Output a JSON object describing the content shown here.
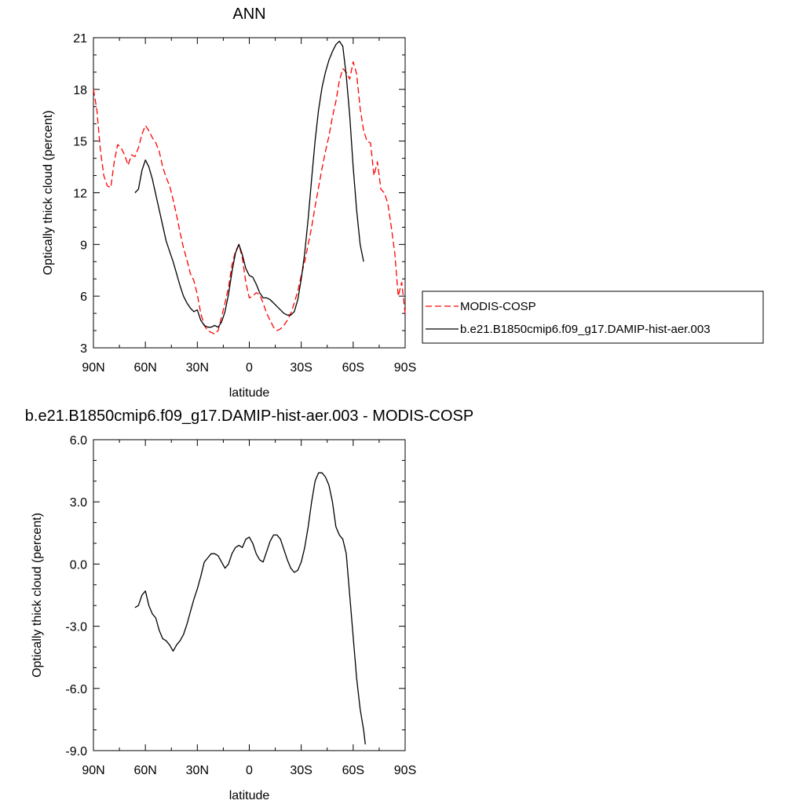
{
  "chart_data": [
    {
      "type": "line",
      "title": "ANN",
      "xlabel": "latitude",
      "ylabel": "Optically thick cloud (percent)",
      "xlim": [
        90,
        -90
      ],
      "ylim": [
        3,
        21
      ],
      "x_ticks": [
        90,
        60,
        30,
        0,
        -30,
        -60,
        -90
      ],
      "x_tick_labels": [
        "90N",
        "60N",
        "30N",
        "0",
        "30S",
        "60S",
        "90S"
      ],
      "y_ticks": [
        3,
        6,
        9,
        12,
        15,
        18,
        21
      ],
      "y_tick_labels": [
        "3",
        "6",
        "9",
        "12",
        "15",
        "18",
        "21"
      ],
      "legend_position": "right",
      "series": [
        {
          "name": "MODIS-COSP",
          "color": "#ff0000",
          "dash": "dashed",
          "points": [
            [
              90,
              18.0
            ],
            [
              88,
              16.8
            ],
            [
              86,
              14.5
            ],
            [
              84,
              13.0
            ],
            [
              82,
              12.4
            ],
            [
              80,
              12.3
            ],
            [
              78,
              13.8
            ],
            [
              76,
              14.8
            ],
            [
              74,
              14.6
            ],
            [
              72,
              14.2
            ],
            [
              70,
              13.6
            ],
            [
              68,
              14.2
            ],
            [
              66,
              14.1
            ],
            [
              64,
              14.6
            ],
            [
              62,
              15.4
            ],
            [
              60,
              15.9
            ],
            [
              58,
              15.6
            ],
            [
              56,
              15.2
            ],
            [
              54,
              14.9
            ],
            [
              52,
              14.4
            ],
            [
              50,
              13.5
            ],
            [
              48,
              12.9
            ],
            [
              46,
              12.4
            ],
            [
              44,
              11.6
            ],
            [
              42,
              10.7
            ],
            [
              40,
              9.7
            ],
            [
              38,
              8.8
            ],
            [
              36,
              8.1
            ],
            [
              34,
              7.3
            ],
            [
              32,
              6.9
            ],
            [
              30,
              6.1
            ],
            [
              28,
              5.0
            ],
            [
              26,
              4.3
            ],
            [
              24,
              4.0
            ],
            [
              22,
              3.9
            ],
            [
              20,
              3.8
            ],
            [
              18,
              4.0
            ],
            [
              16,
              4.8
            ],
            [
              14,
              5.6
            ],
            [
              12,
              6.5
            ],
            [
              10,
              7.8
            ],
            [
              8,
              8.6
            ],
            [
              6,
              9.0
            ],
            [
              4,
              8.2
            ],
            [
              2,
              6.8
            ],
            [
              0,
              5.9
            ],
            [
              -2,
              6.0
            ],
            [
              -4,
              6.2
            ],
            [
              -6,
              6.1
            ],
            [
              -8,
              5.6
            ],
            [
              -10,
              5.0
            ],
            [
              -12,
              4.6
            ],
            [
              -14,
              4.2
            ],
            [
              -16,
              4.0
            ],
            [
              -18,
              4.1
            ],
            [
              -20,
              4.3
            ],
            [
              -22,
              4.6
            ],
            [
              -24,
              5.0
            ],
            [
              -26,
              5.6
            ],
            [
              -28,
              6.3
            ],
            [
              -30,
              7.2
            ],
            [
              -32,
              8.0
            ],
            [
              -34,
              9.0
            ],
            [
              -36,
              10.0
            ],
            [
              -38,
              11.2
            ],
            [
              -40,
              12.3
            ],
            [
              -42,
              13.4
            ],
            [
              -44,
              14.4
            ],
            [
              -46,
              15.3
            ],
            [
              -48,
              16.4
            ],
            [
              -50,
              17.3
            ],
            [
              -52,
              18.5
            ],
            [
              -54,
              19.2
            ],
            [
              -56,
              19.0
            ],
            [
              -58,
              18.6
            ],
            [
              -60,
              19.6
            ],
            [
              -62,
              18.9
            ],
            [
              -64,
              16.9
            ],
            [
              -66,
              15.6
            ],
            [
              -68,
              15.0
            ],
            [
              -70,
              14.9
            ],
            [
              -72,
              13.0
            ],
            [
              -74,
              13.8
            ],
            [
              -76,
              12.2
            ],
            [
              -78,
              12.0
            ],
            [
              -80,
              11.4
            ],
            [
              -82,
              10.0
            ],
            [
              -84,
              8.5
            ],
            [
              -86,
              6.0
            ],
            [
              -88,
              6.8
            ],
            [
              -90,
              5.0
            ]
          ]
        },
        {
          "name": "b.e21.B1850cmip6.f09_g17.DAMIP-hist-aer.003",
          "color": "#000000",
          "dash": "solid",
          "points": [
            [
              66,
              12.0
            ],
            [
              64,
              12.2
            ],
            [
              62,
              13.3
            ],
            [
              60,
              13.9
            ],
            [
              58,
              13.5
            ],
            [
              56,
              12.8
            ],
            [
              54,
              11.9
            ],
            [
              52,
              11.0
            ],
            [
              50,
              10.1
            ],
            [
              48,
              9.2
            ],
            [
              46,
              8.6
            ],
            [
              44,
              8.0
            ],
            [
              42,
              7.3
            ],
            [
              40,
              6.6
            ],
            [
              38,
              6.0
            ],
            [
              36,
              5.6
            ],
            [
              34,
              5.3
            ],
            [
              32,
              5.1
            ],
            [
              30,
              5.2
            ],
            [
              28,
              4.6
            ],
            [
              26,
              4.3
            ],
            [
              24,
              4.2
            ],
            [
              22,
              4.2
            ],
            [
              20,
              4.3
            ],
            [
              18,
              4.2
            ],
            [
              16,
              4.5
            ],
            [
              14,
              5.1
            ],
            [
              12,
              6.1
            ],
            [
              10,
              7.4
            ],
            [
              8,
              8.5
            ],
            [
              6,
              9.0
            ],
            [
              4,
              8.4
            ],
            [
              2,
              7.6
            ],
            [
              0,
              7.2
            ],
            [
              -2,
              7.1
            ],
            [
              -4,
              6.7
            ],
            [
              -6,
              6.2
            ],
            [
              -8,
              5.9
            ],
            [
              -10,
              5.9
            ],
            [
              -12,
              5.8
            ],
            [
              -14,
              5.6
            ],
            [
              -16,
              5.4
            ],
            [
              -18,
              5.2
            ],
            [
              -20,
              5.0
            ],
            [
              -22,
              4.9
            ],
            [
              -24,
              4.9
            ],
            [
              -26,
              5.1
            ],
            [
              -28,
              5.8
            ],
            [
              -30,
              7.0
            ],
            [
              -32,
              8.5
            ],
            [
              -34,
              10.5
            ],
            [
              -36,
              12.8
            ],
            [
              -38,
              15.0
            ],
            [
              -40,
              16.8
            ],
            [
              -42,
              18.1
            ],
            [
              -44,
              19.0
            ],
            [
              -46,
              19.7
            ],
            [
              -48,
              20.2
            ],
            [
              -50,
              20.6
            ],
            [
              -52,
              20.8
            ],
            [
              -54,
              20.5
            ],
            [
              -56,
              18.8
            ],
            [
              -58,
              16.5
            ],
            [
              -60,
              13.5
            ],
            [
              -62,
              11.0
            ],
            [
              -64,
              9.0
            ],
            [
              -66,
              8.0
            ]
          ]
        }
      ]
    },
    {
      "type": "line",
      "title": "b.e21.B1850cmip6.f09_g17.DAMIP-hist-aer.003 - MODIS-COSP",
      "xlabel": "latitude",
      "ylabel": "Optically thick cloud (percent)",
      "xlim": [
        90,
        -90
      ],
      "ylim": [
        -9.0,
        6.0
      ],
      "x_ticks": [
        90,
        60,
        30,
        0,
        -30,
        -60,
        -90
      ],
      "x_tick_labels": [
        "90N",
        "60N",
        "30N",
        "0",
        "30S",
        "60S",
        "90S"
      ],
      "y_ticks": [
        -9,
        -6,
        -3,
        0,
        3,
        6
      ],
      "y_tick_labels": [
        "-9.0",
        "-6.0",
        "-3.0",
        "0.0",
        "3.0",
        "6.0"
      ],
      "series": [
        {
          "name": "",
          "color": "#000000",
          "dash": "solid",
          "points": [
            [
              66,
              -2.1
            ],
            [
              64,
              -2.0
            ],
            [
              62,
              -1.5
            ],
            [
              60,
              -1.3
            ],
            [
              58,
              -2.0
            ],
            [
              56,
              -2.4
            ],
            [
              54,
              -2.6
            ],
            [
              52,
              -3.2
            ],
            [
              50,
              -3.6
            ],
            [
              48,
              -3.7
            ],
            [
              46,
              -3.9
            ],
            [
              44,
              -4.2
            ],
            [
              42,
              -3.9
            ],
            [
              40,
              -3.7
            ],
            [
              38,
              -3.4
            ],
            [
              36,
              -2.9
            ],
            [
              34,
              -2.3
            ],
            [
              32,
              -1.7
            ],
            [
              30,
              -1.2
            ],
            [
              28,
              -0.6
            ],
            [
              26,
              0.1
            ],
            [
              24,
              0.3
            ],
            [
              22,
              0.5
            ],
            [
              20,
              0.5
            ],
            [
              18,
              0.4
            ],
            [
              16,
              0.1
            ],
            [
              14,
              -0.2
            ],
            [
              12,
              0.0
            ],
            [
              10,
              0.5
            ],
            [
              8,
              0.8
            ],
            [
              6,
              0.9
            ],
            [
              4,
              0.8
            ],
            [
              2,
              1.2
            ],
            [
              0,
              1.3
            ],
            [
              -2,
              1.0
            ],
            [
              -4,
              0.5
            ],
            [
              -6,
              0.2
            ],
            [
              -8,
              0.1
            ],
            [
              -10,
              0.6
            ],
            [
              -12,
              1.1
            ],
            [
              -14,
              1.4
            ],
            [
              -16,
              1.4
            ],
            [
              -18,
              1.2
            ],
            [
              -20,
              0.7
            ],
            [
              -22,
              0.2
            ],
            [
              -24,
              -0.2
            ],
            [
              -26,
              -0.4
            ],
            [
              -28,
              -0.3
            ],
            [
              -30,
              0.1
            ],
            [
              -32,
              0.8
            ],
            [
              -34,
              1.8
            ],
            [
              -36,
              3.0
            ],
            [
              -38,
              4.0
            ],
            [
              -40,
              4.4
            ],
            [
              -42,
              4.4
            ],
            [
              -44,
              4.2
            ],
            [
              -46,
              3.8
            ],
            [
              -48,
              3.0
            ],
            [
              -50,
              1.8
            ],
            [
              -52,
              1.4
            ],
            [
              -54,
              1.2
            ],
            [
              -56,
              0.5
            ],
            [
              -58,
              -1.5
            ],
            [
              -60,
              -3.5
            ],
            [
              -62,
              -5.5
            ],
            [
              -64,
              -7.0
            ],
            [
              -66,
              -8.0
            ],
            [
              -67,
              -8.7
            ]
          ]
        }
      ]
    }
  ]
}
